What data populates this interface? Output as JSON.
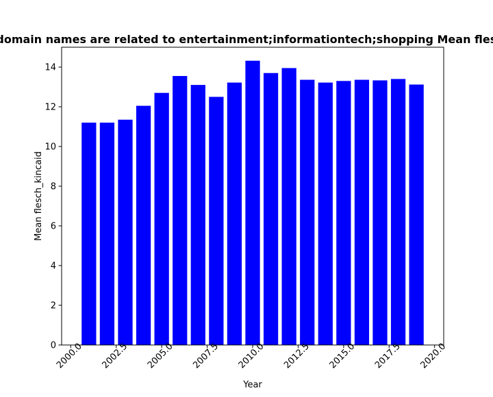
{
  "chart_data": {
    "type": "bar",
    "title": "Pages whose domain names are related to entertainment;informationtech;shopping Mean flesch_kincaid in pr",
    "xlabel": "Year",
    "ylabel": "Mean flesch_kincaid",
    "x": [
      2001,
      2002,
      2003,
      2004,
      2005,
      2006,
      2007,
      2008,
      2009,
      2010,
      2011,
      2012,
      2013,
      2014,
      2015,
      2016,
      2017,
      2018,
      2019
    ],
    "values": [
      11.2,
      11.2,
      11.35,
      12.05,
      12.7,
      13.55,
      13.1,
      12.5,
      13.22,
      14.32,
      13.7,
      13.95,
      13.36,
      13.22,
      13.3,
      13.36,
      13.33,
      13.4,
      13.12
    ],
    "bar_color": "#0000ff",
    "xlim": [
      1999.5,
      2020.5
    ],
    "ylim": [
      0,
      15
    ],
    "xticks": [
      2000.0,
      2002.5,
      2005.0,
      2007.5,
      2010.0,
      2012.5,
      2015.0,
      2017.5,
      2020.0
    ],
    "xtick_labels": [
      "2000.0",
      "2002.5",
      "2005.0",
      "2007.5",
      "2010.0",
      "2012.5",
      "2015.0",
      "2017.5",
      "2020.0"
    ],
    "yticks": [
      0,
      2,
      4,
      6,
      8,
      10,
      12,
      14
    ],
    "ytick_labels": [
      "0",
      "2",
      "4",
      "6",
      "8",
      "10",
      "12",
      "14"
    ],
    "grid": false,
    "legend": "none"
  }
}
